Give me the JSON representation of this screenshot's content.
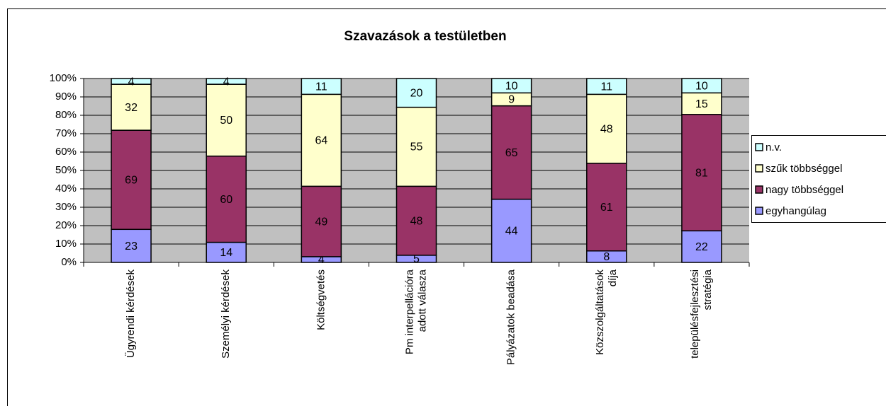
{
  "chart_data": {
    "type": "stacked-percent-bar",
    "title": "Szavazások a testületben",
    "categories": [
      [
        "Ügyrendi kérdések"
      ],
      [
        "Személyi kérdések"
      ],
      [
        "Költségvetés"
      ],
      [
        "Pm interpellációra",
        "adott válasza"
      ],
      [
        "Pályázatok beadása"
      ],
      [
        "Közszolgáltatások",
        "díja"
      ],
      [
        "településfejlesztési",
        "stratégia"
      ]
    ],
    "series": [
      {
        "name": "egyhangúlag",
        "color": "#9999ff",
        "values": [
          23,
          14,
          4,
          5,
          44,
          8,
          22
        ]
      },
      {
        "name": "nagy többséggel",
        "color": "#993366",
        "values": [
          69,
          60,
          49,
          48,
          65,
          61,
          81
        ]
      },
      {
        "name": "szűk többséggel",
        "color": "#ffffcc",
        "values": [
          32,
          50,
          64,
          55,
          9,
          48,
          15
        ]
      },
      {
        "name": "n.v.",
        "color": "#ccffff",
        "values": [
          4,
          4,
          11,
          20,
          10,
          11,
          10
        ]
      }
    ],
    "ylim": [
      0,
      100
    ],
    "yticks": [
      {
        "value": 0,
        "label": "0%"
      },
      {
        "value": 10,
        "label": "10%"
      },
      {
        "value": 20,
        "label": "20%"
      },
      {
        "value": 30,
        "label": "30%"
      },
      {
        "value": 40,
        "label": "40%"
      },
      {
        "value": 50,
        "label": "50%"
      },
      {
        "value": 60,
        "label": "60%"
      },
      {
        "value": 70,
        "label": "70%"
      },
      {
        "value": 80,
        "label": "80%"
      },
      {
        "value": 90,
        "label": "90%"
      },
      {
        "value": 100,
        "label": "100%"
      }
    ],
    "grid": true,
    "legend": "right"
  }
}
